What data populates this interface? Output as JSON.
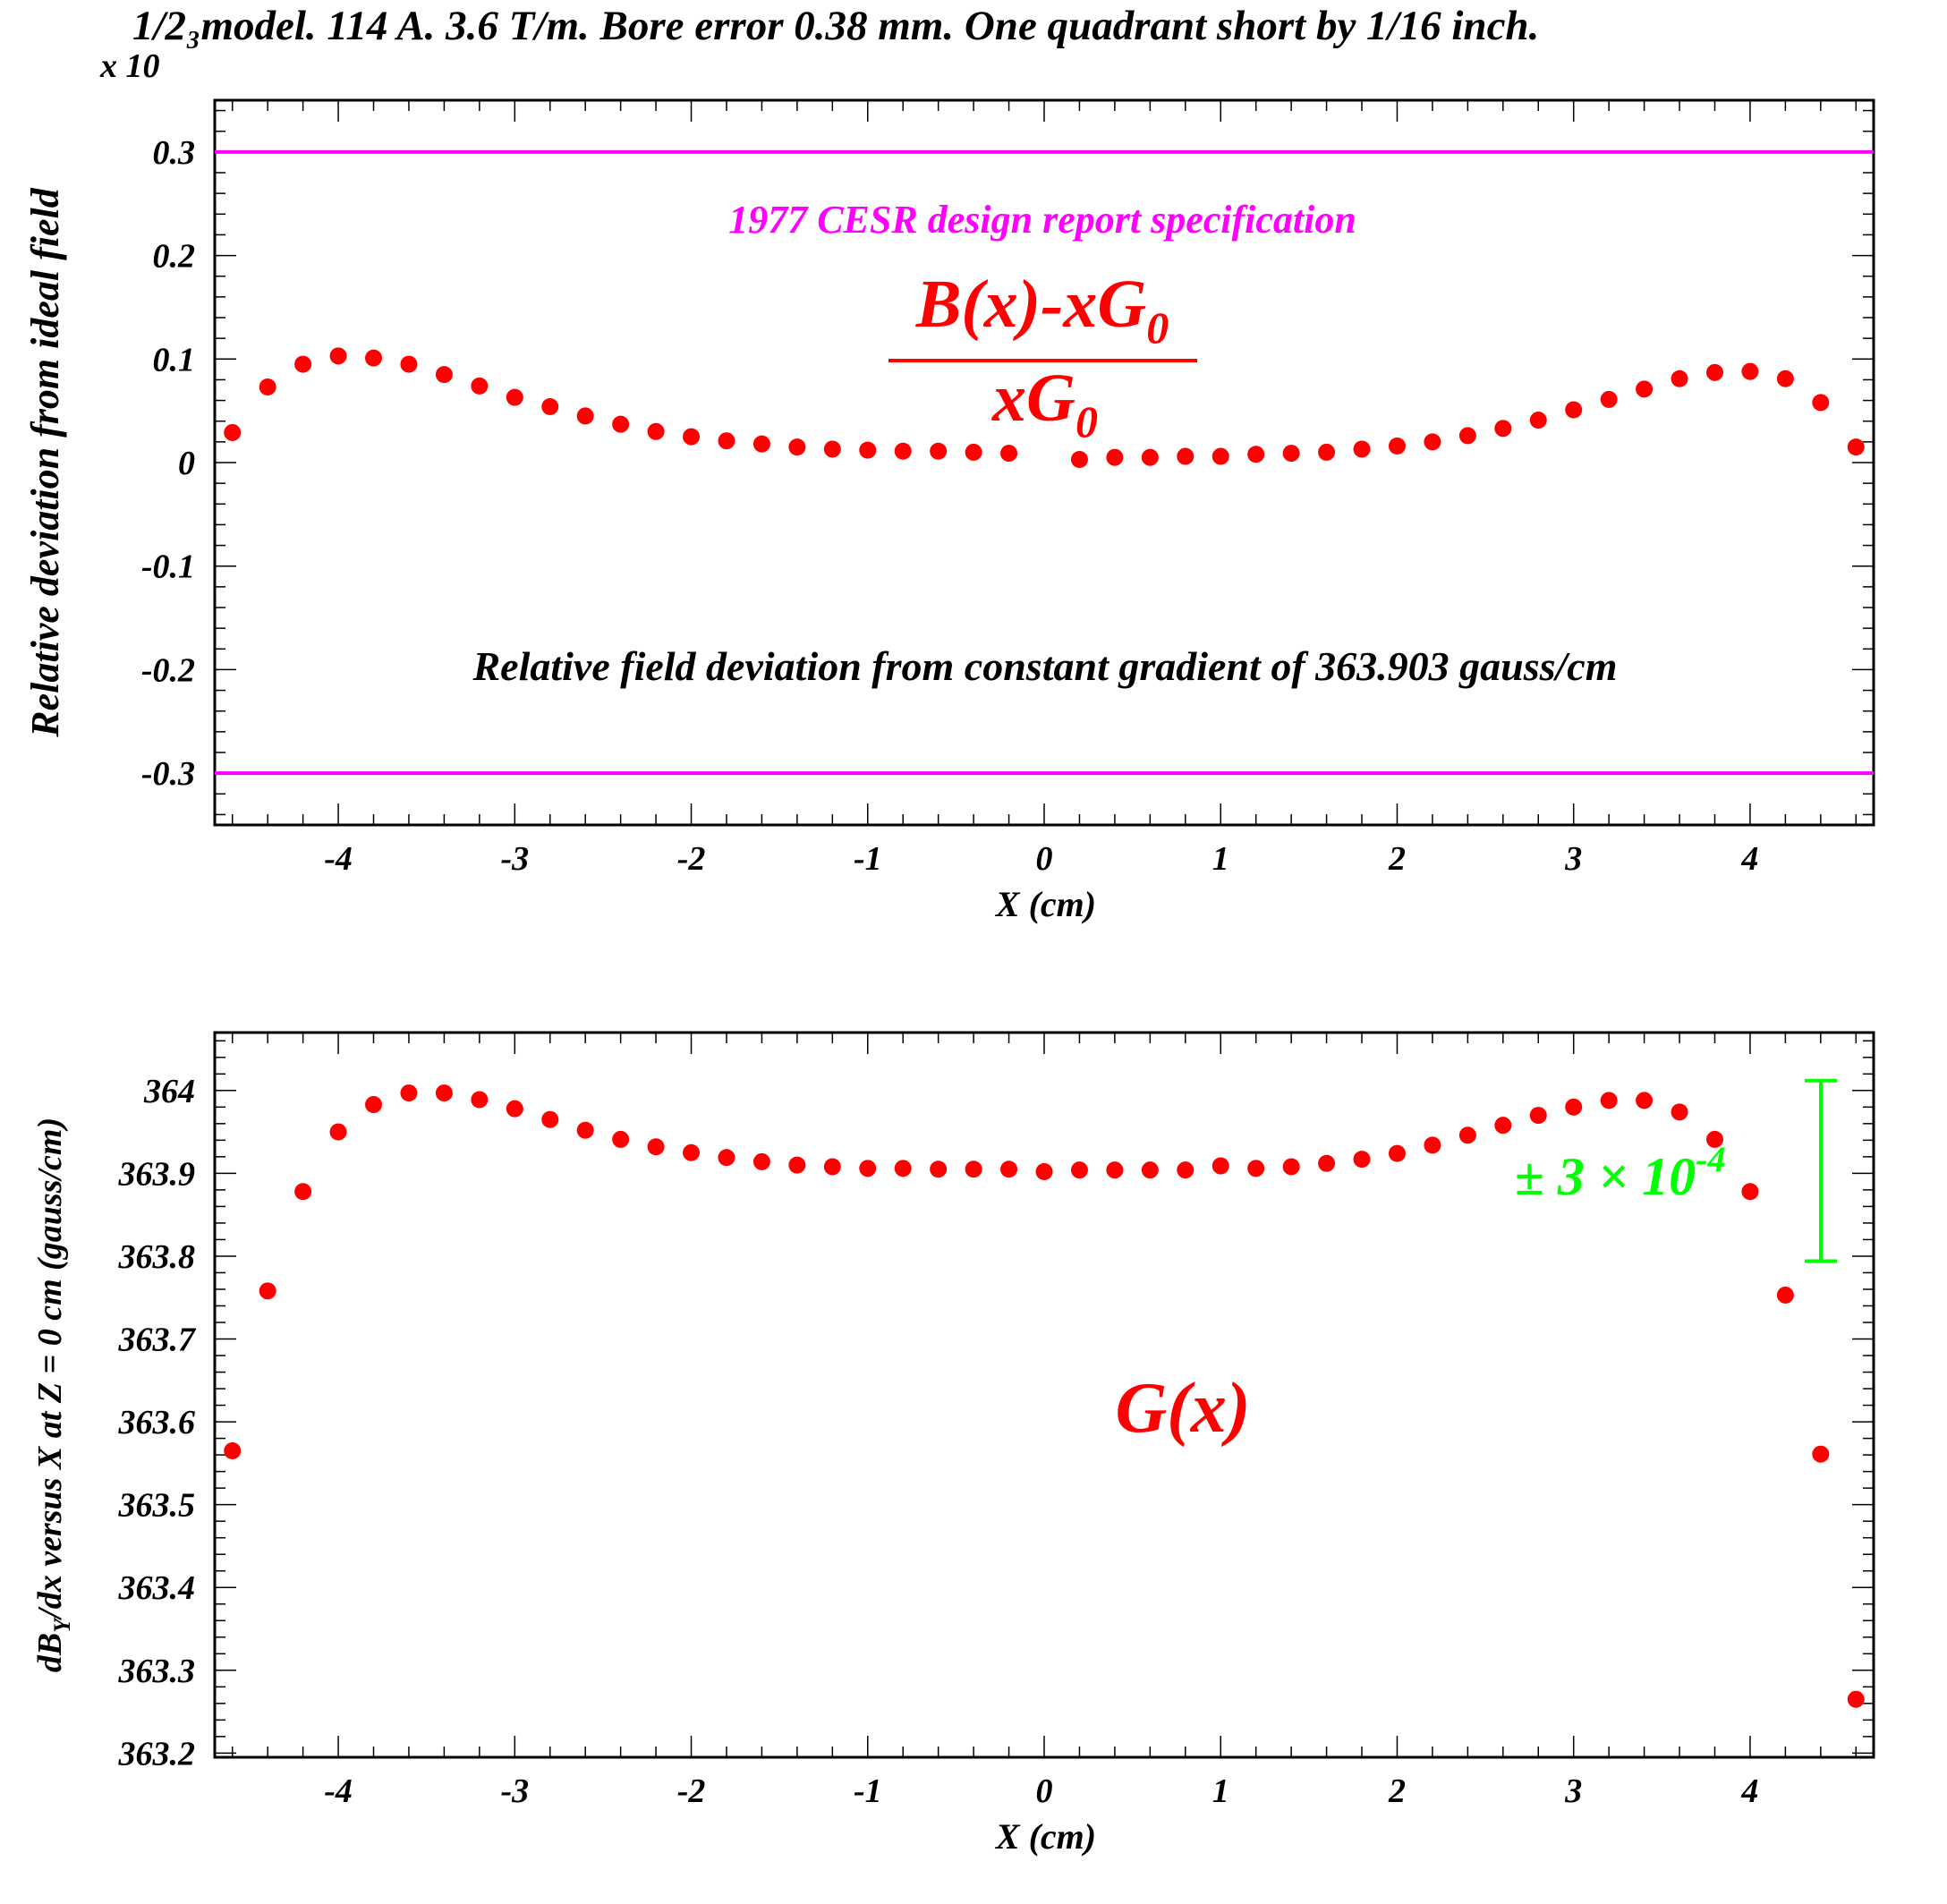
{
  "title": "1/2₃model. 114 A. 3.6 T/m. Bore error 0.38 mm. One quadrant short by 1/16 inch.",
  "colors": {
    "points": "#ff0000",
    "spec": "#ff00ff",
    "errorbar": "#00ff00",
    "axis": "#000000"
  },
  "chart_data": [
    {
      "type": "scatter",
      "name": "top",
      "xlabel": "X (cm)",
      "ylabel": "Relative deviation from ideal field",
      "y_multiplier_label": "x 10",
      "xlim": [
        -4.7,
        4.7
      ],
      "ylim": [
        -0.35,
        0.35
      ],
      "xticks": [
        -4,
        -3,
        -2,
        -1,
        0,
        1,
        2,
        3,
        4
      ],
      "xtick_labels": [
        "-4",
        "-3",
        "-2",
        "-1",
        "0",
        "1",
        "2",
        "3",
        "4"
      ],
      "yticks": [
        -0.3,
        -0.2,
        -0.1,
        0,
        0.1,
        0.2,
        0.3
      ],
      "ytick_labels": [
        "-0.3",
        "-0.2",
        "-0.1",
        "0",
        "0.1",
        "0.2",
        "0.3"
      ],
      "spec_lines": [
        0.3,
        -0.3
      ],
      "spec_label": "1977 CESR design report specification",
      "formula_num_main": "B(x)-xG",
      "formula_num_sub": "0",
      "formula_den_main": "xG",
      "formula_den_sub": "0",
      "annotation": "Relative field deviation from constant gradient of 363.903 gauss/cm",
      "x": [
        -4.6,
        -4.4,
        -4.2,
        -4.0,
        -3.8,
        -3.6,
        -3.4,
        -3.2,
        -3.0,
        -2.8,
        -2.6,
        -2.4,
        -2.2,
        -2.0,
        -1.8,
        -1.6,
        -1.4,
        -1.2,
        -1.0,
        -0.8,
        -0.6,
        -0.4,
        -0.2,
        0.2,
        0.4,
        0.6,
        0.8,
        1.0,
        1.2,
        1.4,
        1.6,
        1.8,
        2.0,
        2.2,
        2.4,
        2.6,
        2.8,
        3.0,
        3.2,
        3.4,
        3.6,
        3.8,
        4.0,
        4.2,
        4.4,
        4.6
      ],
      "y": [
        0.029,
        0.073,
        0.095,
        0.103,
        0.101,
        0.095,
        0.085,
        0.074,
        0.063,
        0.054,
        0.045,
        0.037,
        0.03,
        0.025,
        0.021,
        0.018,
        0.015,
        0.013,
        0.012,
        0.011,
        0.011,
        0.01,
        0.009,
        0.003,
        0.005,
        0.005,
        0.006,
        0.006,
        0.008,
        0.009,
        0.01,
        0.013,
        0.016,
        0.02,
        0.026,
        0.033,
        0.041,
        0.051,
        0.061,
        0.071,
        0.081,
        0.087,
        0.088,
        0.081,
        0.058,
        0.015
      ]
    },
    {
      "type": "scatter",
      "name": "bottom",
      "xlabel": "X (cm)",
      "ylabel_main": "dB",
      "ylabel_sub": "Y",
      "ylabel_rest": "/dx versus X at Z = 0 cm (gauss/cm)",
      "xlim": [
        -4.7,
        4.7
      ],
      "ylim": [
        363.195,
        364.07
      ],
      "xticks": [
        -4,
        -3,
        -2,
        -1,
        0,
        1,
        2,
        3,
        4
      ],
      "xtick_labels": [
        "-4",
        "-3",
        "-2",
        "-1",
        "0",
        "1",
        "2",
        "3",
        "4"
      ],
      "yticks": [
        363.2,
        363.3,
        363.4,
        363.5,
        363.6,
        363.7,
        363.8,
        363.9,
        364.0
      ],
      "ytick_labels": [
        "363.2",
        "363.3",
        "363.4",
        "363.5",
        "363.6",
        "363.7",
        "363.8",
        "363.9",
        "364"
      ],
      "curve_label": "G(x)",
      "errorbar": {
        "x": 4.4,
        "center": 363.903,
        "half": 0.109
      },
      "errorbar_label_main": "± 3 × 10",
      "errorbar_label_exp": "-4",
      "x": [
        -4.6,
        -4.4,
        -4.2,
        -4.0,
        -3.8,
        -3.6,
        -3.4,
        -3.2,
        -3.0,
        -2.8,
        -2.6,
        -2.4,
        -2.2,
        -2.0,
        -1.8,
        -1.6,
        -1.4,
        -1.2,
        -1.0,
        -0.8,
        -0.6,
        -0.4,
        -0.2,
        0.0,
        0.2,
        0.4,
        0.6,
        0.8,
        1.0,
        1.2,
        1.4,
        1.6,
        1.8,
        2.0,
        2.2,
        2.4,
        2.6,
        2.8,
        3.0,
        3.2,
        3.4,
        3.6,
        3.8,
        4.0,
        4.2,
        4.4,
        4.6
      ],
      "y": [
        363.565,
        363.758,
        363.878,
        363.95,
        363.983,
        363.997,
        363.997,
        363.989,
        363.978,
        363.965,
        363.952,
        363.941,
        363.932,
        363.925,
        363.919,
        363.914,
        363.91,
        363.908,
        363.906,
        363.906,
        363.905,
        363.905,
        363.905,
        363.902,
        363.904,
        363.904,
        363.904,
        363.904,
        363.909,
        363.906,
        363.908,
        363.912,
        363.917,
        363.924,
        363.934,
        363.946,
        363.958,
        363.97,
        363.98,
        363.988,
        363.988,
        363.974,
        363.941,
        363.878,
        363.753,
        363.561,
        363.265
      ]
    }
  ]
}
